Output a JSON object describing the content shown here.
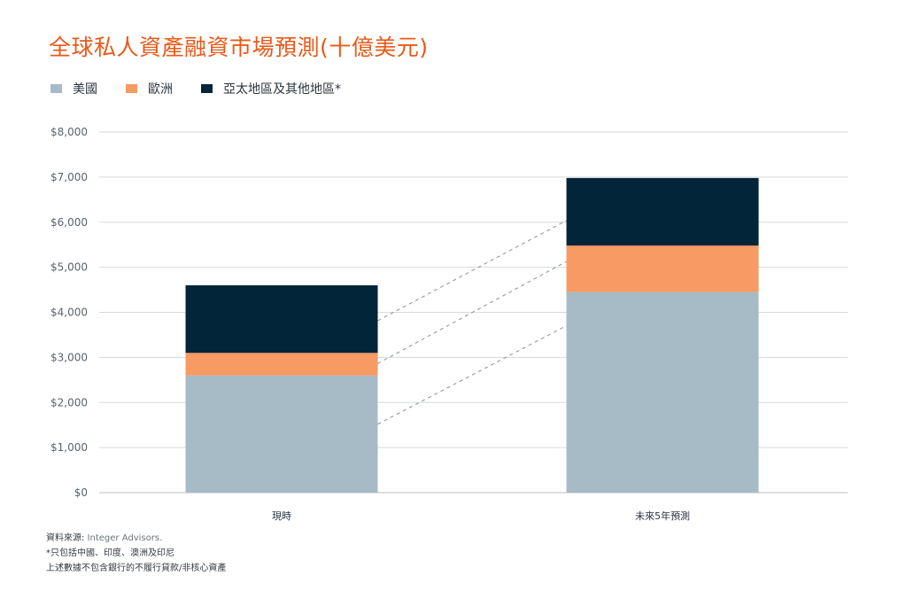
{
  "title": "全球私人資產融資市場預測(十億美元)",
  "legend": [
    {
      "label": "美國",
      "color": "#a7bbc7"
    },
    {
      "label": "歐洲",
      "color": "#f79a63"
    },
    {
      "label": "亞太地區及其他地區*",
      "color": "#03253a"
    }
  ],
  "chart_data": {
    "type": "bar",
    "stacked": true,
    "categories": [
      "現時",
      "未來5年預測"
    ],
    "series": [
      {
        "name": "美國",
        "values": [
          2600,
          4450
        ]
      },
      {
        "name": "歐洲",
        "values": [
          500,
          1030
        ]
      },
      {
        "name": "亞太地區及其他地區*",
        "values": [
          1500,
          1500
        ]
      }
    ],
    "ylim": [
      0,
      8000
    ],
    "yticks": [
      "$0",
      "$1,000",
      "$2,000",
      "$3,000",
      "$4,000",
      "$5,000",
      "$6,000",
      "$7,000",
      "$8,000"
    ],
    "grid": true,
    "legend_position": "top-left"
  },
  "notes": {
    "source_label": "資料來源:",
    "source_value": " Integer Advisors.",
    "footnote": "*只包括中國、印度、澳洲及印尼",
    "disclaimer": "上述數據不包含銀行的不履行貸款/非核心資產"
  }
}
